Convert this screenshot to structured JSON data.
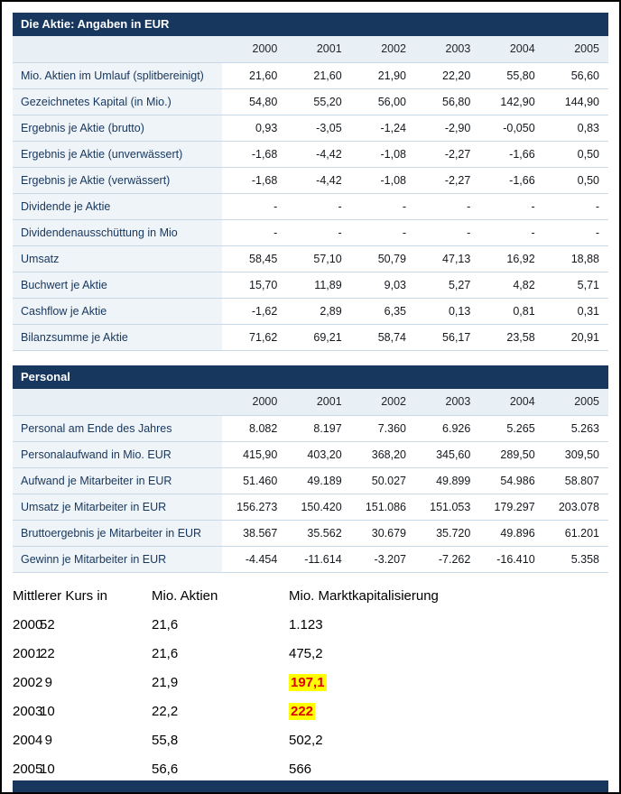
{
  "colors": {
    "navy": "#17375E",
    "yearbg": "#E8EFF5",
    "labelbg": "#EFF4F9",
    "line": "#C9D8E6",
    "hlbg": "#FFFF00",
    "hltext": "#E00000"
  },
  "tables": [
    {
      "title": "Die Aktie: Angaben in EUR",
      "years": [
        "2000",
        "2001",
        "2002",
        "2003",
        "2004",
        "2005"
      ],
      "rows": [
        {
          "label": "Mio. Aktien im Umlauf (splitbereinigt)",
          "values": [
            "21,60",
            "21,60",
            "21,90",
            "22,20",
            "55,80",
            "56,60"
          ]
        },
        {
          "label": "Gezeichnetes Kapital (in Mio.)",
          "values": [
            "54,80",
            "55,20",
            "56,00",
            "56,80",
            "142,90",
            "144,90"
          ]
        },
        {
          "label": "Ergebnis je Aktie (brutto)",
          "values": [
            "0,93",
            "-3,05",
            "-1,24",
            "-2,90",
            "-0,050",
            "0,83"
          ]
        },
        {
          "label": "Ergebnis je Aktie (unverwässert)",
          "values": [
            "-1,68",
            "-4,42",
            "-1,08",
            "-2,27",
            "-1,66",
            "0,50"
          ]
        },
        {
          "label": "Ergebnis je Aktie (verwässert)",
          "values": [
            "-1,68",
            "-4,42",
            "-1,08",
            "-2,27",
            "-1,66",
            "0,50"
          ]
        },
        {
          "label": "Dividende je Aktie",
          "values": [
            "-",
            "-",
            "-",
            "-",
            "-",
            "-"
          ]
        },
        {
          "label": "Dividendenausschüttung in Mio",
          "values": [
            "-",
            "-",
            "-",
            "-",
            "-",
            "-"
          ]
        },
        {
          "label": "Umsatz",
          "values": [
            "58,45",
            "57,10",
            "50,79",
            "47,13",
            "16,92",
            "18,88"
          ]
        },
        {
          "label": "Buchwert je Aktie",
          "values": [
            "15,70",
            "11,89",
            "9,03",
            "5,27",
            "4,82",
            "5,71"
          ]
        },
        {
          "label": "Cashflow je Aktie",
          "values": [
            "-1,62",
            "2,89",
            "6,35",
            "0,13",
            "0,81",
            "0,31"
          ]
        },
        {
          "label": "Bilanzsumme je Aktie",
          "values": [
            "71,62",
            "69,21",
            "58,74",
            "56,17",
            "23,58",
            "20,91"
          ]
        }
      ]
    },
    {
      "title": "Personal",
      "years": [
        "2000",
        "2001",
        "2002",
        "2003",
        "2004",
        "2005"
      ],
      "rows": [
        {
          "label": "Personal am Ende des Jahres",
          "values": [
            "8.082",
            "8.197",
            "7.360",
            "6.926",
            "5.265",
            "5.263"
          ]
        },
        {
          "label": "Personalaufwand in Mio. EUR",
          "values": [
            "415,90",
            "403,20",
            "368,20",
            "345,60",
            "289,50",
            "309,50"
          ]
        },
        {
          "label": "Aufwand je Mitarbeiter in EUR",
          "values": [
            "51.460",
            "49.189",
            "50.027",
            "49.899",
            "54.986",
            "58.807"
          ]
        },
        {
          "label": "Umsatz je Mitarbeiter in EUR",
          "values": [
            "156.273",
            "150.420",
            "151.086",
            "151.053",
            "179.297",
            "203.078"
          ]
        },
        {
          "label": "Bruttoergebnis je Mitarbeiter in EUR",
          "values": [
            "38.567",
            "35.562",
            "30.679",
            "35.720",
            "49.896",
            "61.201"
          ]
        },
        {
          "label": "Gewinn je Mitarbeiter in EUR",
          "values": [
            "-4.454",
            "-11.614",
            "-3.207",
            "-7.262",
            "-16.410",
            "5.358"
          ]
        }
      ]
    }
  ],
  "market_section": {
    "col_headers": [
      "Mittlerer Kurs in",
      "Mio. Aktien",
      "Mio. Marktkapitalisierung"
    ],
    "rows": [
      {
        "year": "2000",
        "kurs": "52",
        "aktien": "21,6",
        "markt": "1.123",
        "highlight": false
      },
      {
        "year": "2001",
        "kurs": "22",
        "aktien": "21,6",
        "markt": "475,2",
        "highlight": false
      },
      {
        "year": "2002",
        "kurs": "9",
        "aktien": "21,9",
        "markt": "197,1",
        "highlight": true
      },
      {
        "year": "2003",
        "kurs": "10",
        "aktien": "22,2",
        "markt": "222",
        "highlight": true
      },
      {
        "year": "2004",
        "kurs": "9",
        "aktien": "55,8",
        "markt": "502,2",
        "highlight": false
      },
      {
        "year": "2005",
        "kurs": "10",
        "aktien": "56,6",
        "markt": "566",
        "highlight": false
      }
    ]
  }
}
